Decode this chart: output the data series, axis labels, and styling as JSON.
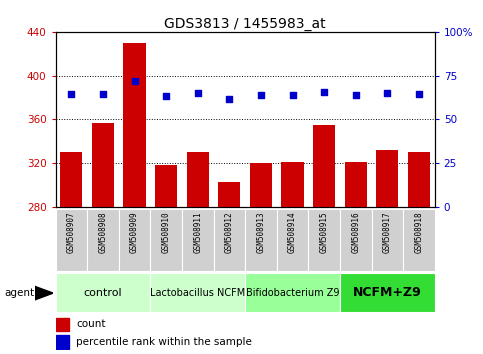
{
  "title": "GDS3813 / 1455983_at",
  "samples": [
    "GSM508907",
    "GSM508908",
    "GSM508909",
    "GSM508910",
    "GSM508911",
    "GSM508912",
    "GSM508913",
    "GSM508914",
    "GSM508915",
    "GSM508916",
    "GSM508917",
    "GSM508918"
  ],
  "counts": [
    330,
    357,
    430,
    318,
    330,
    303,
    320,
    321,
    355,
    321,
    332,
    330
  ],
  "percentiles": [
    383,
    383,
    395,
    381,
    384,
    379,
    382,
    382,
    385,
    382,
    384,
    383
  ],
  "ylim_left": [
    280,
    440
  ],
  "ylim_right": [
    0,
    100
  ],
  "yticks_left": [
    280,
    320,
    360,
    400,
    440
  ],
  "yticks_right": [
    0,
    25,
    50,
    75,
    100
  ],
  "bar_color": "#cc0000",
  "dot_color": "#0000cc",
  "group_labels": [
    "control",
    "Lactobacillus NCFM",
    "Bifidobacterium Z9",
    "NCFM+Z9"
  ],
  "group_starts": [
    0,
    3,
    6,
    9
  ],
  "group_ends": [
    2,
    5,
    8,
    11
  ],
  "group_colors": [
    "#ccffcc",
    "#ccffcc",
    "#99ff99",
    "#33dd33"
  ],
  "group_fontsizes": [
    8,
    7,
    7,
    9
  ],
  "group_fontweights": [
    "normal",
    "normal",
    "normal",
    "bold"
  ],
  "agent_label": "agent",
  "legend_count_label": "count",
  "legend_pct_label": "percentile rank within the sample",
  "bar_base": 280,
  "title_fontsize": 10,
  "axis_label_color_left": "#cc0000",
  "axis_label_color_right": "#0000cc",
  "tick_label_bg": "#d0d0d0"
}
